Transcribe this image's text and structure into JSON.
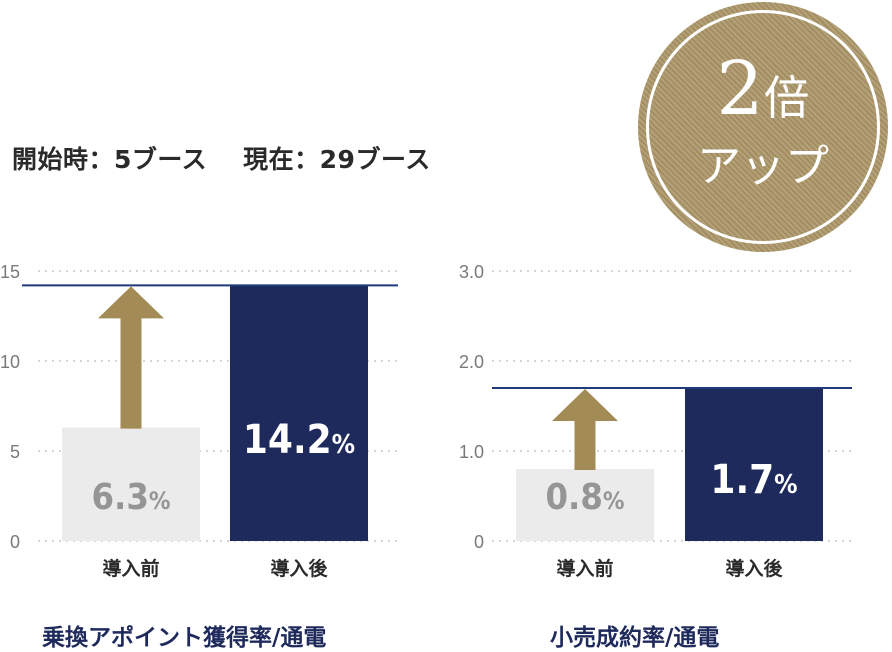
{
  "header": {
    "start_text": "開始時：5ブース",
    "current_text": "現在：29ブース"
  },
  "badge": {
    "number": "2",
    "kanji": "倍",
    "sub": "アップ"
  },
  "colors": {
    "before": "#ebebeb",
    "before_text": "#959595",
    "after": "#1f2a5c",
    "after_text": "#ffffff",
    "arrow": "#a28b55",
    "guide": "#1f3a7a",
    "grid": "#bdbdbd",
    "tick": "#7a7a7a"
  },
  "chart_data": [
    {
      "type": "bar",
      "title": "乗換アポイント獲得率/通電",
      "categories": [
        "導入前",
        "導入後"
      ],
      "values": [
        6.3,
        14.2
      ],
      "value_labels": [
        "6.3",
        "14.2"
      ],
      "unit": "%",
      "ylim": [
        0,
        15
      ],
      "yticks": [
        0,
        5,
        10,
        15
      ],
      "ytick_labels": [
        "0",
        "5",
        "10",
        "15"
      ],
      "grid": true
    },
    {
      "type": "bar",
      "title": "小売成約率/通電",
      "categories": [
        "導入前",
        "導入後"
      ],
      "values": [
        0.8,
        1.7
      ],
      "value_labels": [
        "0.8",
        "1.7"
      ],
      "unit": "%",
      "ylim": [
        0,
        3.0
      ],
      "yticks": [
        0,
        1.0,
        2.0,
        3.0
      ],
      "ytick_labels": [
        "0",
        "1.0",
        "2.0",
        "3.0"
      ],
      "grid": true
    }
  ]
}
